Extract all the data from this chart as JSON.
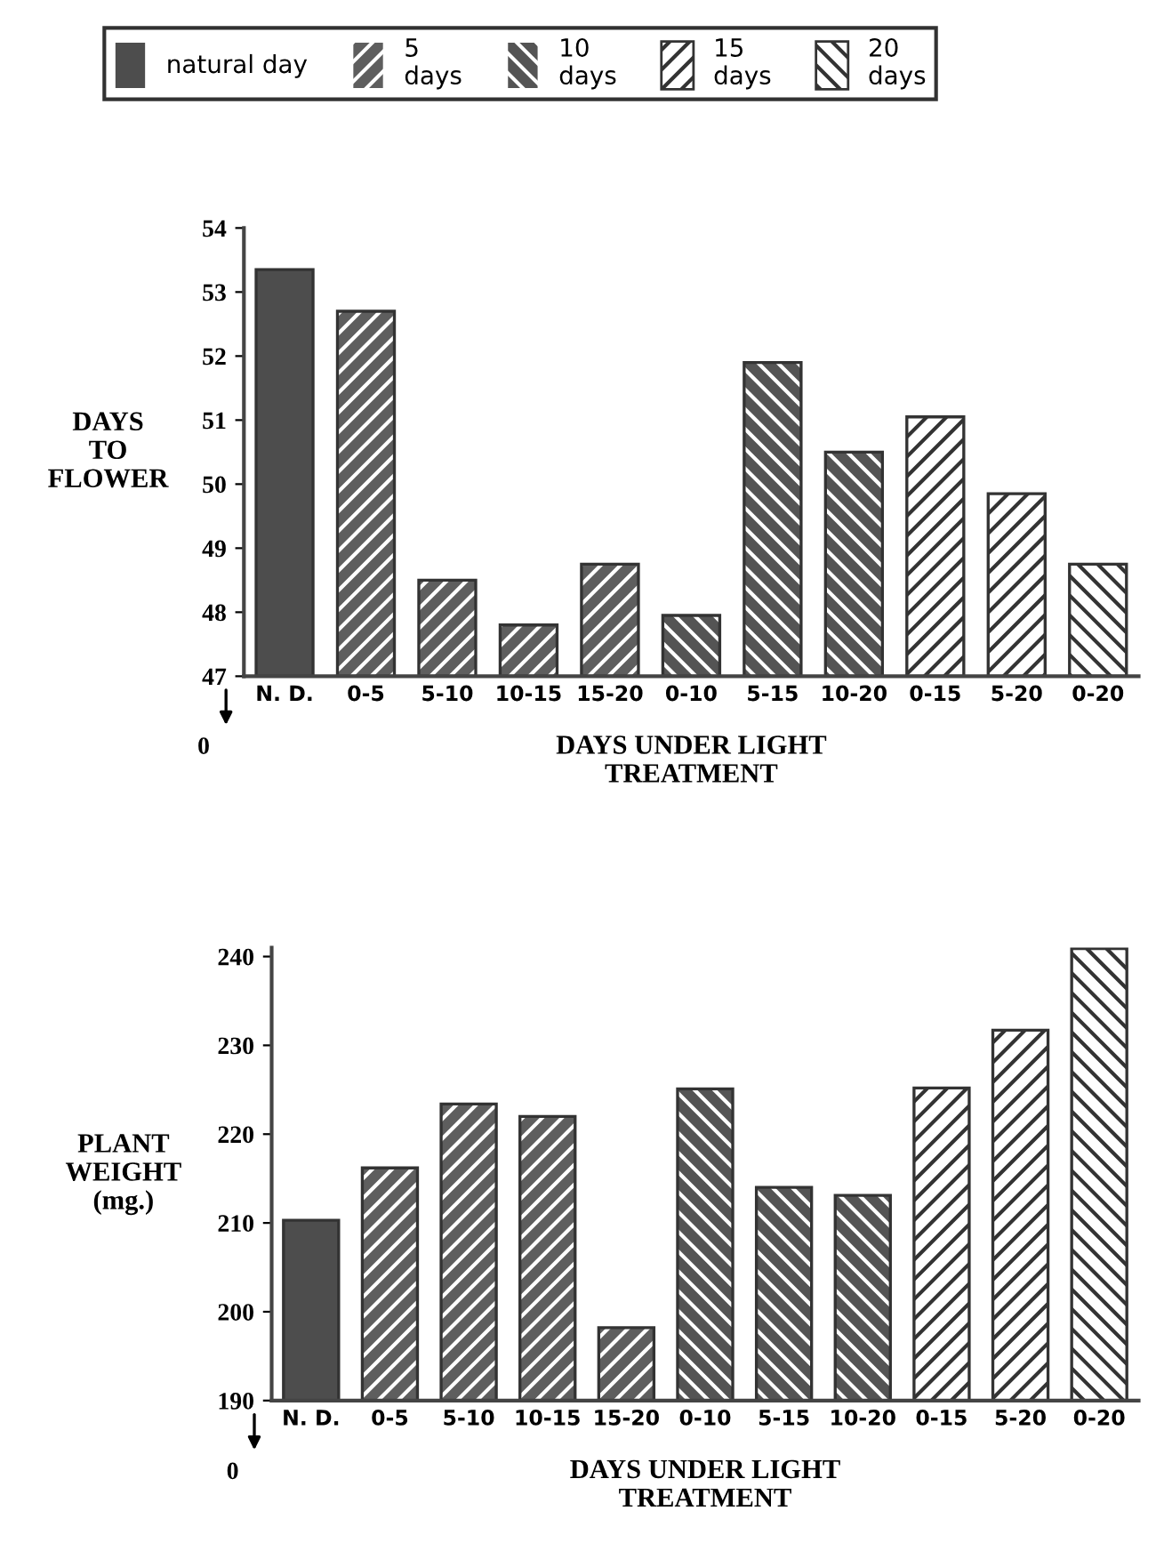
{
  "chart_data": [
    {
      "type": "bar",
      "ylabel": "DAYS\nTO\nFLOWER",
      "xlabel": "DAYS UNDER LIGHT\nTREATMENT",
      "categories": [
        "N. D.",
        "0-5",
        "5-10",
        "10-15",
        "15-20",
        "0-10",
        "5-15",
        "10-20",
        "0-15",
        "5-20",
        "0-20"
      ],
      "series": [
        {
          "name": "natural day",
          "color": "#4d4d4d",
          "values": [
            53.35,
            null,
            null,
            null,
            null,
            null,
            null,
            null,
            null,
            null,
            null
          ]
        },
        {
          "name": "5\ndays",
          "color": "#5e5e5e",
          "values": [
            null,
            52.7,
            48.5,
            47.8,
            48.75,
            null,
            null,
            null,
            null,
            null,
            null
          ]
        },
        {
          "name": "10\ndays",
          "color": "#545454",
          "values": [
            null,
            null,
            null,
            null,
            null,
            47.95,
            51.9,
            50.5,
            null,
            null,
            null
          ]
        },
        {
          "name": "15\ndays",
          "color": "#ffffff",
          "values": [
            null,
            null,
            null,
            null,
            null,
            null,
            null,
            null,
            51.05,
            49.85,
            null
          ]
        },
        {
          "name": "20\ndays",
          "color": "#fefefe",
          "values": [
            null,
            null,
            null,
            null,
            null,
            null,
            null,
            null,
            null,
            null,
            48.75
          ]
        }
      ],
      "ylim": [
        47,
        54
      ],
      "yticks": [
        47,
        48,
        49,
        50,
        51,
        52,
        53,
        54
      ],
      "legend": "top",
      "annotations": [
        "0"
      ]
    },
    {
      "type": "bar",
      "ylabel": "PLANT\nWEIGHT\n(mg.)",
      "xlabel": "DAYS UNDER LIGHT\nTREATMENT",
      "categories": [
        "N. D.",
        "0-5",
        "5-10",
        "10-15",
        "15-20",
        "0-10",
        "5-15",
        "10-20",
        "0-15",
        "5-20",
        "0-20"
      ],
      "series": [
        {
          "color": "#4d4d4d",
          "values": [
            210.3,
            null,
            null,
            null,
            null,
            null,
            null,
            null,
            null,
            null,
            null
          ]
        },
        {
          "color": "#5e5e5e",
          "values": [
            null,
            216.2,
            223.4,
            222,
            198.2,
            null,
            null,
            null,
            null,
            null,
            null
          ]
        },
        {
          "color": "#545454",
          "values": [
            null,
            null,
            null,
            null,
            null,
            225.1,
            214,
            213.1,
            null,
            null,
            null
          ]
        },
        {
          "color": "#ffffff",
          "values": [
            null,
            null,
            null,
            null,
            null,
            null,
            null,
            null,
            225.2,
            231.7,
            null
          ]
        },
        {
          "color": "#fefefe",
          "values": [
            null,
            null,
            null,
            null,
            null,
            null,
            null,
            null,
            null,
            null,
            240.9
          ]
        }
      ],
      "ylim": [
        190,
        241
      ],
      "yticks": [
        190,
        200,
        210,
        220,
        230,
        240
      ],
      "annotations": [
        "0"
      ]
    }
  ]
}
